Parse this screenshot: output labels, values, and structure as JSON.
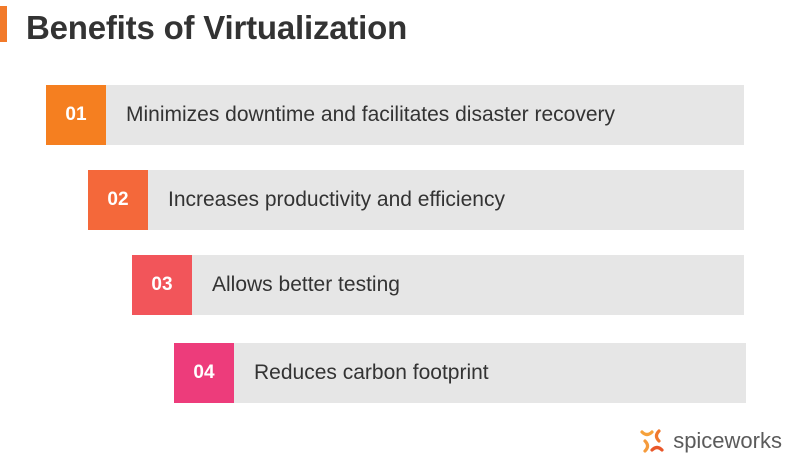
{
  "title": "Benefits of Virtualization",
  "colors": {
    "title_accent": "#f27a2a",
    "row_bar": "#e6e6e6",
    "text": "#333333"
  },
  "benefits": [
    {
      "number": "01",
      "text": "Minimizes downtime and facilitates disaster recovery",
      "color": "#f57f20"
    },
    {
      "number": "02",
      "text": "Increases productivity and efficiency",
      "color": "#f4683a"
    },
    {
      "number": "03",
      "text": "Allows better testing",
      "color": "#f2555a"
    },
    {
      "number": "04",
      "text": "Reduces carbon footprint",
      "color": "#ed3c7b"
    }
  ],
  "brand": {
    "name": "spiceworks",
    "icon": "spiceworks-logo-icon"
  }
}
